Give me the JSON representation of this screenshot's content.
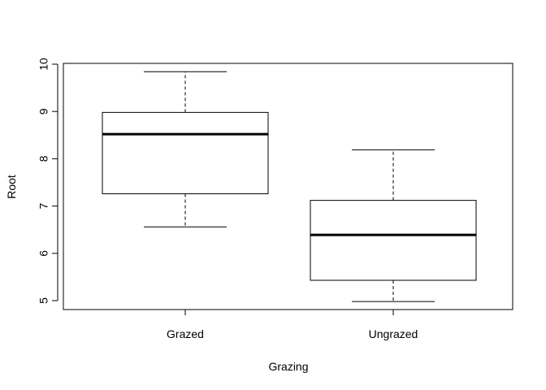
{
  "chart_data": {
    "type": "boxplot",
    "title": "",
    "xlabel": "Grazing",
    "ylabel": "Root",
    "ylim": [
      4.8,
      10.05
    ],
    "yticks": [
      5,
      6,
      7,
      8,
      9,
      10
    ],
    "grid": false,
    "legend": "none",
    "colors": {
      "stroke": "#000000",
      "fill": "#ffffff"
    },
    "categories": [
      "Grazed",
      "Ungrazed"
    ],
    "boxes": [
      {
        "category": "Grazed",
        "whisker_low": 6.56,
        "q1": 7.26,
        "median": 8.52,
        "q3": 8.98,
        "whisker_high": 9.84
      },
      {
        "category": "Ungrazed",
        "whisker_low": 4.98,
        "q1": 5.43,
        "median": 6.39,
        "q3": 7.12,
        "whisker_high": 8.19
      }
    ]
  }
}
